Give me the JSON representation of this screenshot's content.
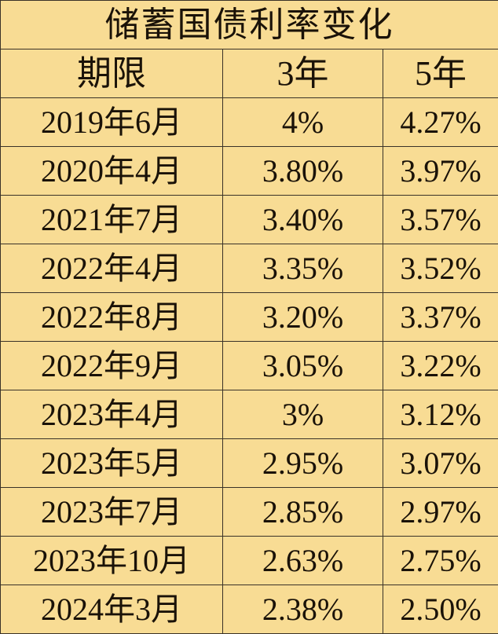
{
  "chart_data": {
    "type": "table",
    "title": "储蓄国债利率变化",
    "columns": [
      "期限",
      "3年",
      "5年"
    ],
    "rows": [
      [
        "2019年6月",
        "4%",
        "4.27%"
      ],
      [
        "2020年4月",
        "3.80%",
        "3.97%"
      ],
      [
        "2021年7月",
        "3.40%",
        "3.57%"
      ],
      [
        "2022年4月",
        "3.35%",
        "3.52%"
      ],
      [
        "2022年8月",
        "3.20%",
        "3.37%"
      ],
      [
        "2022年9月",
        "3.05%",
        "3.22%"
      ],
      [
        "2023年4月",
        "3%",
        "3.12%"
      ],
      [
        "2023年5月",
        "2.95%",
        "3.07%"
      ],
      [
        "2023年7月",
        "2.85%",
        "2.97%"
      ],
      [
        "2023年10月",
        "2.63%",
        "2.75%"
      ],
      [
        "2024年3月",
        "2.38%",
        "2.50%"
      ]
    ],
    "background_color": "#f8dc94",
    "border_color": "#3a3228"
  }
}
